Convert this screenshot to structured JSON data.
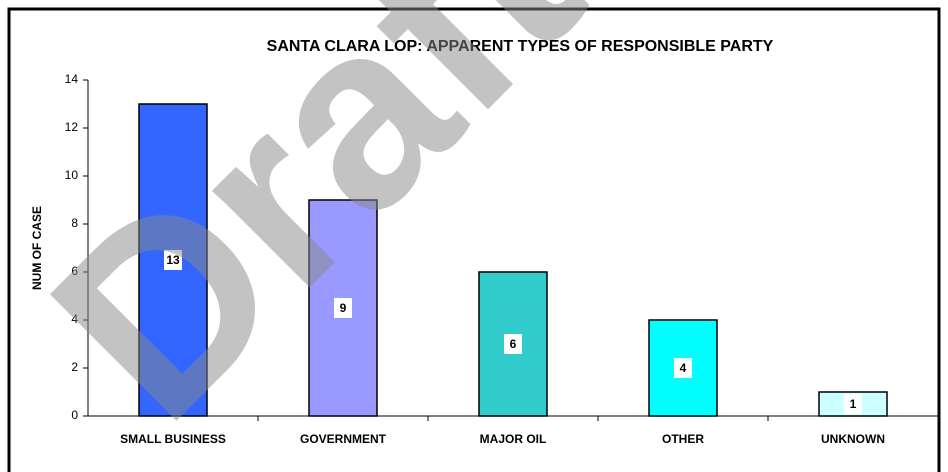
{
  "chart_data": {
    "type": "bar",
    "title": "SANTA CLARA LOP: APPARENT TYPES OF RESPONSIBLE PARTY",
    "y_label": "NUM OF CASE",
    "watermark": "Draft",
    "categories": [
      "SMALL BUSINESS",
      "GOVERNMENT",
      "MAJOR OIL",
      "OTHER",
      "UNKNOWN"
    ],
    "values": [
      13,
      9,
      6,
      4,
      1
    ],
    "colors": [
      "#3366ff",
      "#9999ff",
      "#33cccc",
      "#00ffff",
      "#ccffff"
    ],
    "ylim": [
      0,
      14
    ],
    "yticks": [
      0,
      2,
      4,
      6,
      8,
      10,
      12,
      14
    ],
    "data_labels": true
  }
}
